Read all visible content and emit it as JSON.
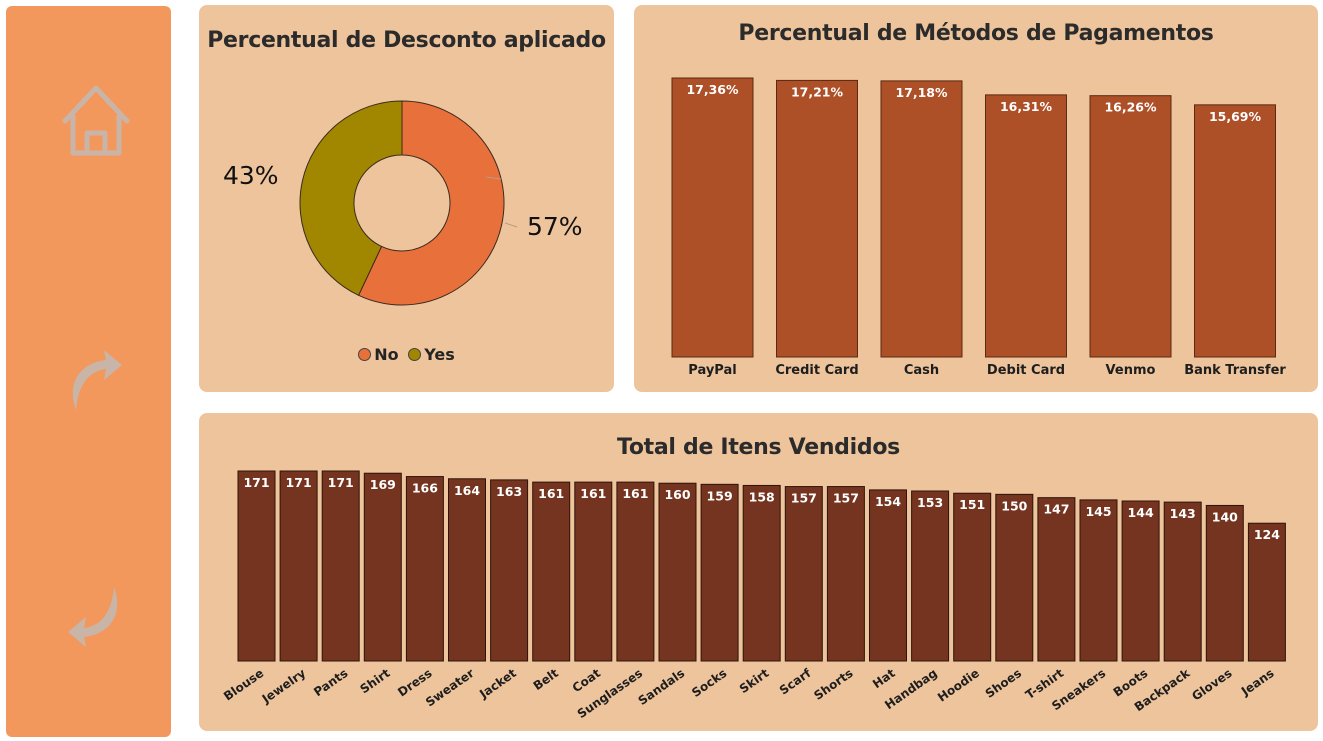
{
  "colors": {
    "sidebar": "#f2985d",
    "panel": "#eec49c",
    "donut_no": "#e8703a",
    "donut_yes": "#a18700",
    "payment_bar": "#ad4f27",
    "items_bar": "#74341f",
    "nav_icon": "#c9b5a8"
  },
  "nav": {
    "icons": [
      "home-icon",
      "forward-arrow-icon",
      "back-arrow-icon"
    ]
  },
  "discount": {
    "title": "Percentual de Desconto aplicado",
    "label_no": "57%",
    "label_yes": "43%",
    "legend_no": "No",
    "legend_yes": "Yes"
  },
  "payments": {
    "title": "Percentual de Métodos de Pagamentos"
  },
  "items": {
    "title": "Total de Itens Vendidos"
  },
  "chart_data": [
    {
      "type": "pie",
      "title": "Percentual de Desconto aplicado",
      "categories": [
        "No",
        "Yes"
      ],
      "values": [
        57,
        43
      ],
      "unit": "%",
      "donut": true,
      "legend": "bottom"
    },
    {
      "type": "bar",
      "title": "Percentual de Métodos de Pagamentos",
      "categories": [
        "PayPal",
        "Credit Card",
        "Cash",
        "Debit Card",
        "Venmo",
        "Bank Transfer"
      ],
      "values": [
        17.36,
        17.21,
        17.18,
        16.31,
        16.26,
        15.69
      ],
      "labels": [
        "17,36%",
        "17,21%",
        "17,18%",
        "16,31%",
        "16,26%",
        "15,69%"
      ],
      "ylim": [
        0,
        17.36
      ],
      "grid": false
    },
    {
      "type": "bar",
      "title": "Total de Itens Vendidos",
      "categories": [
        "Blouse",
        "Jewelry",
        "Pants",
        "Shirt",
        "Dress",
        "Sweater",
        "Jacket",
        "Belt",
        "Coat",
        "Sunglasses",
        "Sandals",
        "Socks",
        "Skirt",
        "Scarf",
        "Shorts",
        "Hat",
        "Handbag",
        "Hoodie",
        "Shoes",
        "T-shirt",
        "Sneakers",
        "Boots",
        "Backpack",
        "Gloves",
        "Jeans"
      ],
      "values": [
        171,
        171,
        171,
        169,
        166,
        164,
        163,
        161,
        161,
        161,
        160,
        159,
        158,
        157,
        157,
        154,
        153,
        151,
        150,
        147,
        145,
        144,
        143,
        140,
        124
      ],
      "ylim": [
        0,
        171
      ],
      "grid": false
    }
  ]
}
